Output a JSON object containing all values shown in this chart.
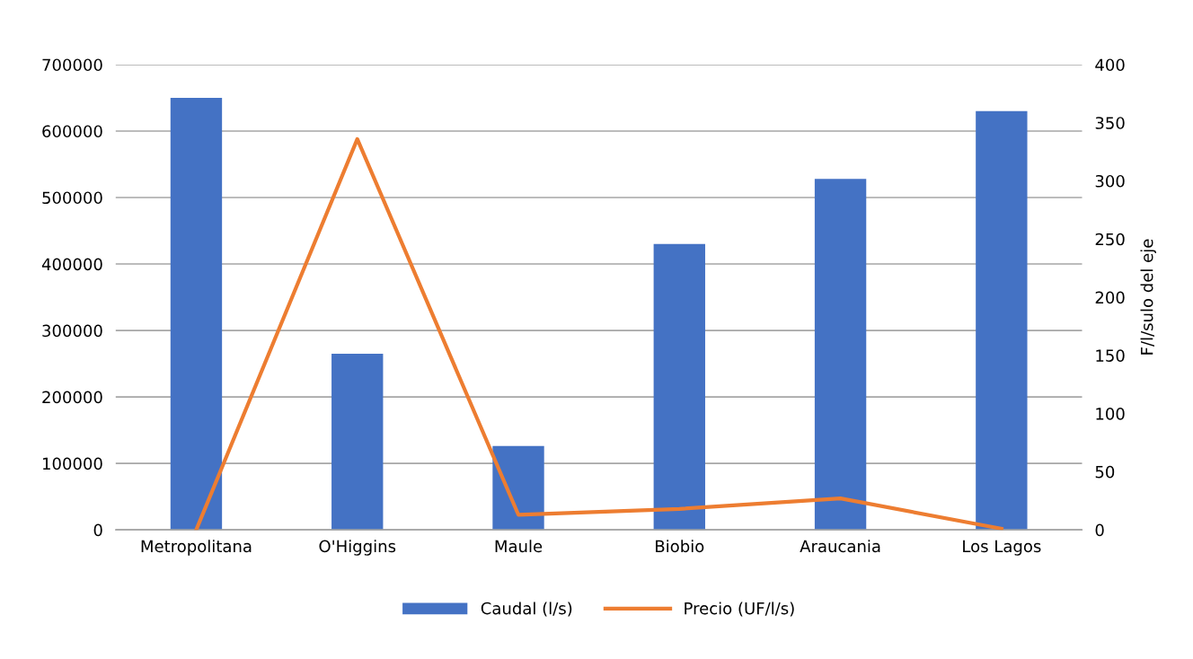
{
  "chart_data": {
    "type": "bar",
    "categories": [
      "Metropolitana",
      "O'Higgins",
      "Maule",
      "Biobio",
      "Araucania",
      "Los Lagos"
    ],
    "series": [
      {
        "name": "Caudal (l/s)",
        "color": "#4472c4",
        "values": [
          650000,
          265000,
          126000,
          430000,
          528000,
          630000
        ]
      },
      {
        "name": "Precio (UF/l/s)",
        "color": "#ed7d31",
        "type": "line",
        "axis": "y2",
        "values": [
          0,
          336,
          13,
          18,
          27,
          1
        ]
      }
    ],
    "y2label": "F/l/sulo del eje",
    "ylim": [
      0,
      700000
    ],
    "yticks": [
      0,
      100000,
      200000,
      300000,
      400000,
      500000,
      600000,
      700000
    ],
    "y2lim": [
      0,
      400
    ],
    "y2ticks": [
      0,
      50,
      100,
      150,
      200,
      250,
      300,
      350,
      400
    ],
    "grid": "y",
    "legend": "bottom"
  }
}
